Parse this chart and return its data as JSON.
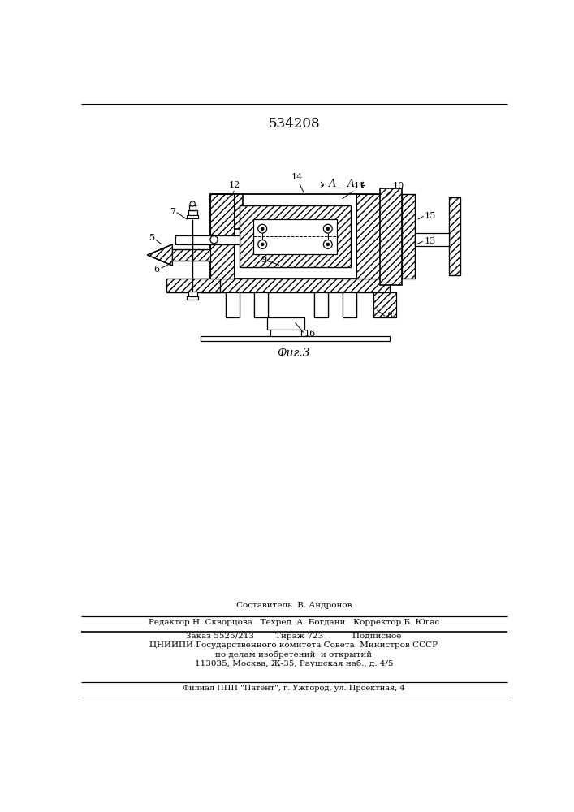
{
  "patent_number": "534208",
  "fig_label": "Фиг.3",
  "footer_line1": "Составитель  В. Андронов",
  "footer_line2": "Редактор Н. Скворцова   Техред  А. Богдани   Корректор Б. Югас",
  "footer_line3": "Заказ 5525/213        Тираж 723           Подписное",
  "footer_line4": "ЦНИИПИ Государственного комитета Совета  Министров СССР",
  "footer_line5": "по делам изобретений  и открытий",
  "footer_line6": "113035, Москва, Ж-35, Раушская наб., д. 4/5",
  "footer_line7": "Филиал ППП \"Патент\", г. Ужгород, ул. Проектная, 4",
  "bg_color": "#ffffff"
}
